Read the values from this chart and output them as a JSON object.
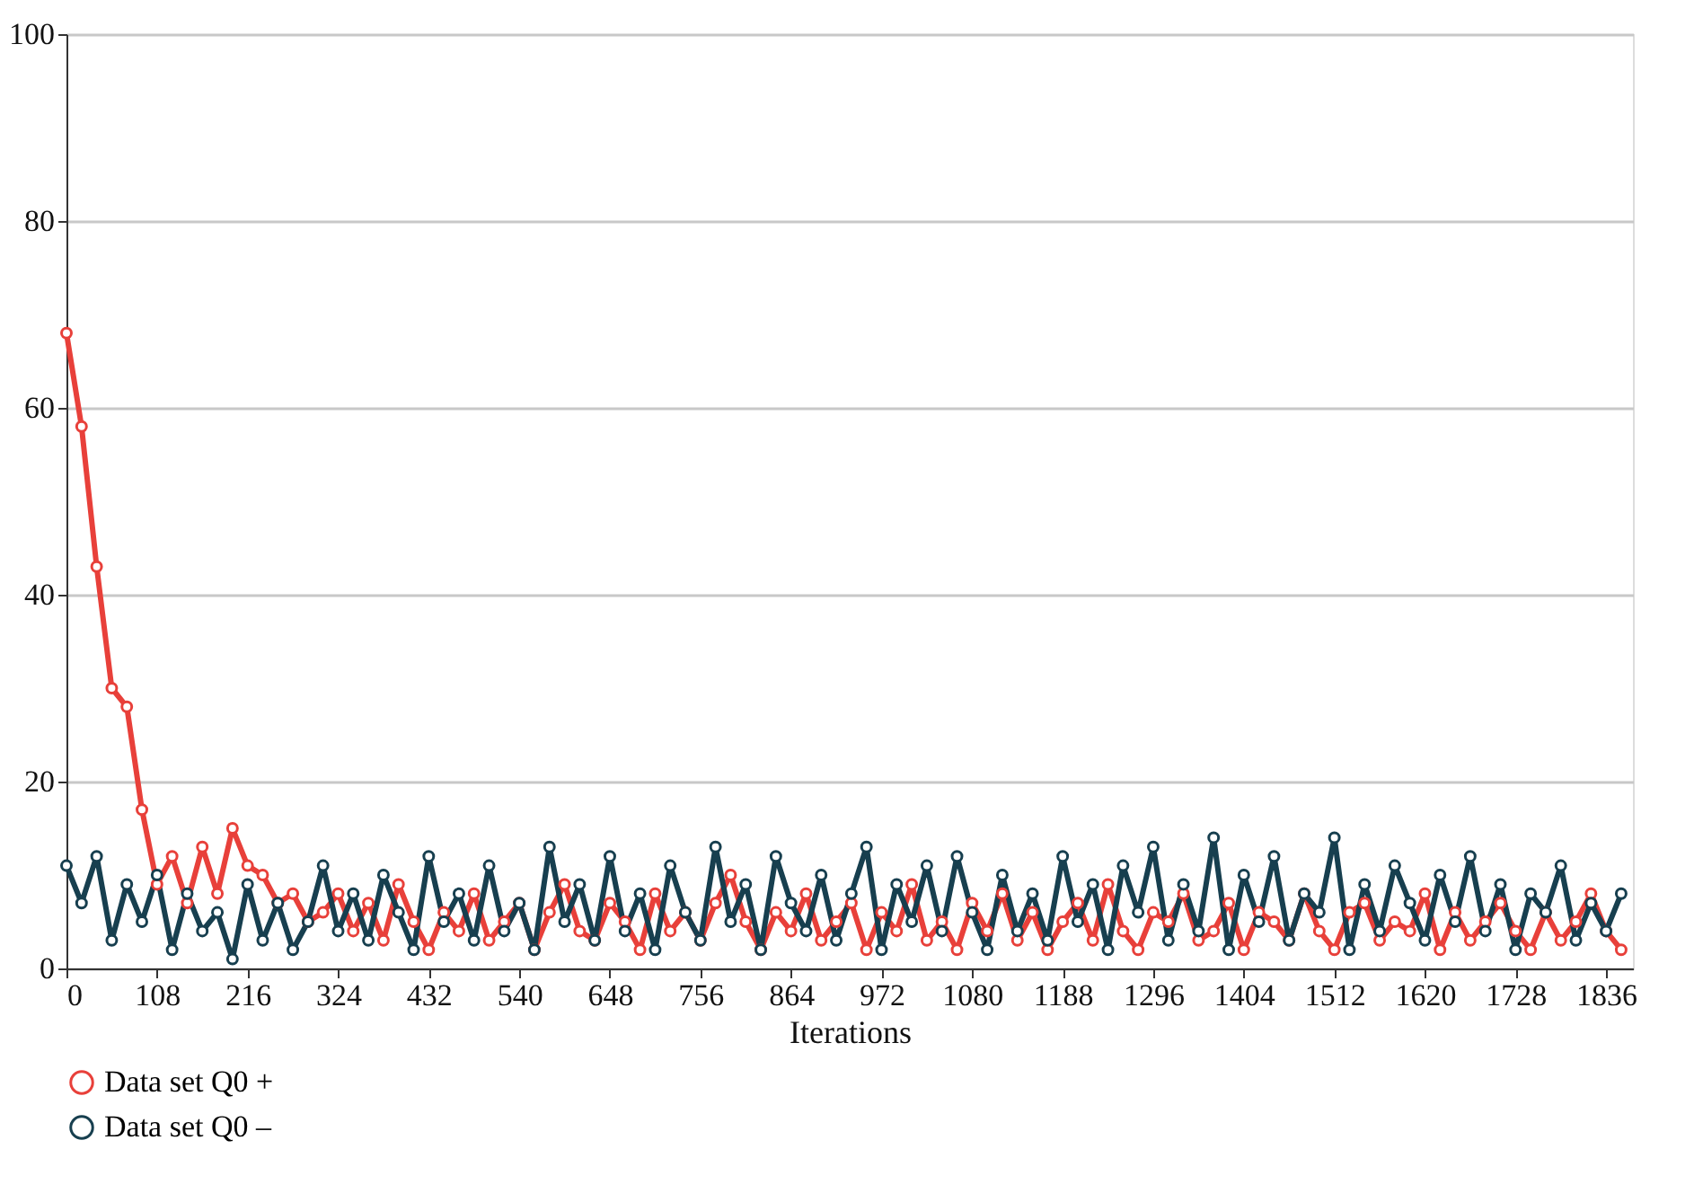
{
  "chart_data": {
    "type": "line",
    "xlabel": "Iterations",
    "x": [
      0,
      18,
      36,
      54,
      72,
      90,
      108,
      126,
      144,
      162,
      180,
      198,
      216,
      234,
      252,
      270,
      288,
      306,
      324,
      342,
      360,
      378,
      396,
      414,
      432,
      450,
      468,
      486,
      504,
      522,
      540,
      558,
      576,
      594,
      612,
      630,
      648,
      666,
      684,
      702,
      720,
      738,
      756,
      774,
      792,
      810,
      828,
      846,
      864,
      882,
      900,
      918,
      936,
      954,
      972,
      990,
      1008,
      1026,
      1044,
      1062,
      1080,
      1098,
      1116,
      1134,
      1152,
      1170,
      1188,
      1206,
      1224,
      1242,
      1260,
      1278,
      1296,
      1314,
      1332,
      1350,
      1368,
      1386,
      1404,
      1422,
      1440,
      1458,
      1476,
      1494,
      1512,
      1530,
      1548,
      1566,
      1584,
      1602,
      1620,
      1638,
      1656,
      1674,
      1692,
      1710,
      1728,
      1746,
      1764,
      1782,
      1800,
      1818,
      1836,
      1854
    ],
    "series": [
      {
        "name": "Data set Q0 +",
        "color": "#e8403a",
        "values": [
          68,
          58,
          43,
          30,
          28,
          17,
          9,
          12,
          7,
          13,
          8,
          15,
          11,
          10,
          7,
          8,
          5,
          6,
          8,
          4,
          7,
          3,
          9,
          5,
          2,
          6,
          4,
          8,
          3,
          5,
          7,
          2,
          6,
          9,
          4,
          3,
          7,
          5,
          2,
          8,
          4,
          6,
          3,
          7,
          10,
          5,
          2,
          6,
          4,
          8,
          3,
          5,
          7,
          2,
          6,
          4,
          9,
          3,
          5,
          2,
          7,
          4,
          8,
          3,
          6,
          2,
          5,
          7,
          3,
          9,
          4,
          2,
          6,
          5,
          8,
          3,
          4,
          7,
          2,
          6,
          5,
          3,
          8,
          4,
          2,
          6,
          7,
          3,
          5,
          4,
          8,
          2,
          6,
          3,
          5,
          7,
          4,
          2,
          6,
          3,
          5,
          8,
          4,
          2
        ]
      },
      {
        "name": "Data set Q0 –",
        "color": "#173f4f",
        "values": [
          11,
          7,
          12,
          3,
          9,
          5,
          10,
          2,
          8,
          4,
          6,
          1,
          9,
          3,
          7,
          2,
          5,
          11,
          4,
          8,
          3,
          10,
          6,
          2,
          12,
          5,
          8,
          3,
          11,
          4,
          7,
          2,
          13,
          5,
          9,
          3,
          12,
          4,
          8,
          2,
          11,
          6,
          3,
          13,
          5,
          9,
          2,
          12,
          7,
          4,
          10,
          3,
          8,
          13,
          2,
          9,
          5,
          11,
          4,
          12,
          6,
          2,
          10,
          4,
          8,
          3,
          12,
          5,
          9,
          2,
          11,
          6,
          13,
          3,
          9,
          4,
          14,
          2,
          10,
          5,
          12,
          3,
          8,
          6,
          14,
          2,
          9,
          4,
          11,
          7,
          3,
          10,
          5,
          12,
          4,
          9,
          2,
          8,
          6,
          11,
          3,
          7,
          4,
          8
        ]
      }
    ],
    "xlim": [
      0,
      1868
    ],
    "xticks": [
      0,
      108,
      216,
      324,
      432,
      540,
      648,
      756,
      864,
      972,
      1080,
      1188,
      1296,
      1404,
      1512,
      1620,
      1728,
      1836
    ],
    "ylim": [
      0,
      100
    ],
    "yticks": [
      0,
      20,
      40,
      60,
      80,
      100
    ],
    "grid": "y",
    "legend": "bottom left",
    "marker": "circle",
    "line_style": "solid"
  }
}
